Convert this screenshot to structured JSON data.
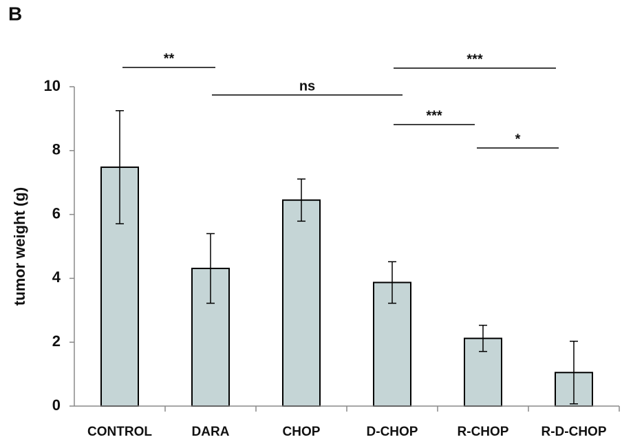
{
  "chart_data": {
    "type": "bar",
    "panel_label": "B",
    "ylabel": "tumor weight (g)",
    "categories": [
      "CONTROL",
      "DARA",
      "CHOP",
      "D-CHOP",
      "R-CHOP",
      "R-D-CHOP"
    ],
    "values": [
      7.48,
      4.31,
      6.45,
      3.87,
      2.12,
      1.05
    ],
    "errors": [
      1.77,
      1.09,
      0.66,
      0.65,
      0.41,
      0.98
    ],
    "color": "#c5d5d6",
    "ylim": [
      0,
      10
    ],
    "yticks": [
      0,
      2,
      4,
      6,
      8,
      10
    ],
    "annotations": [
      "**",
      "ns",
      "***",
      "***",
      "*"
    ]
  }
}
